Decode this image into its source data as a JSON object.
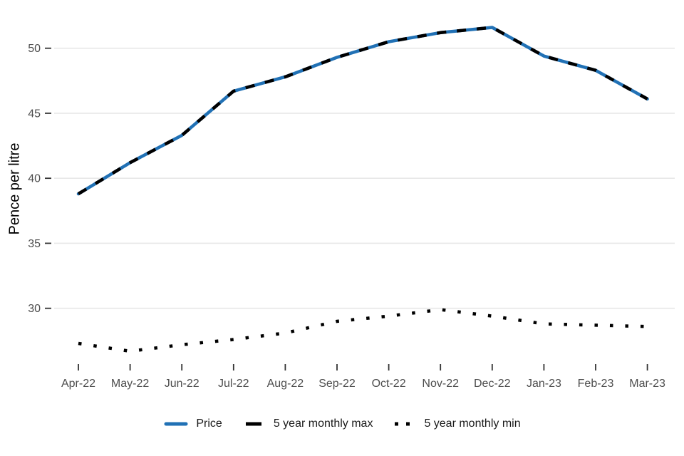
{
  "chart_data": {
    "type": "line",
    "title": "",
    "xlabel": "",
    "ylabel": "Pence per litre",
    "categories": [
      "Apr-22",
      "May-22",
      "Jun-22",
      "Jul-22",
      "Aug-22",
      "Sep-22",
      "Oct-22",
      "Nov-22",
      "Dec-22",
      "Jan-23",
      "Feb-23",
      "Mar-23"
    ],
    "y_ticks": [
      30,
      35,
      40,
      45,
      50
    ],
    "ylim": [
      26,
      53
    ],
    "grid": "horizontal-only",
    "legend_position": "bottom-center",
    "series": [
      {
        "name": "Price",
        "color": "#2171b5",
        "line_style": "solid",
        "values": [
          38.8,
          41.2,
          43.3,
          46.7,
          47.8,
          49.3,
          50.5,
          51.2,
          51.6,
          49.4,
          48.3,
          46.1
        ]
      },
      {
        "name": "5 year monthly max",
        "color": "#000000",
        "line_style": "dashed",
        "values": [
          38.8,
          41.2,
          43.3,
          46.7,
          47.8,
          49.3,
          50.5,
          51.2,
          51.6,
          49.4,
          48.3,
          46.1
        ]
      },
      {
        "name": "5 year monthly min",
        "color": "#000000",
        "line_style": "dotted",
        "values": [
          27.3,
          26.7,
          27.2,
          27.6,
          28.1,
          29.0,
          29.4,
          29.9,
          29.4,
          28.8,
          28.7,
          28.6
        ]
      }
    ],
    "colors": {
      "accent_blue": "#2171b5",
      "line_black": "#000000",
      "gridline": "#e7e7e7",
      "tick_mark": "#333333",
      "tick_text": "#4d4d4d"
    }
  }
}
